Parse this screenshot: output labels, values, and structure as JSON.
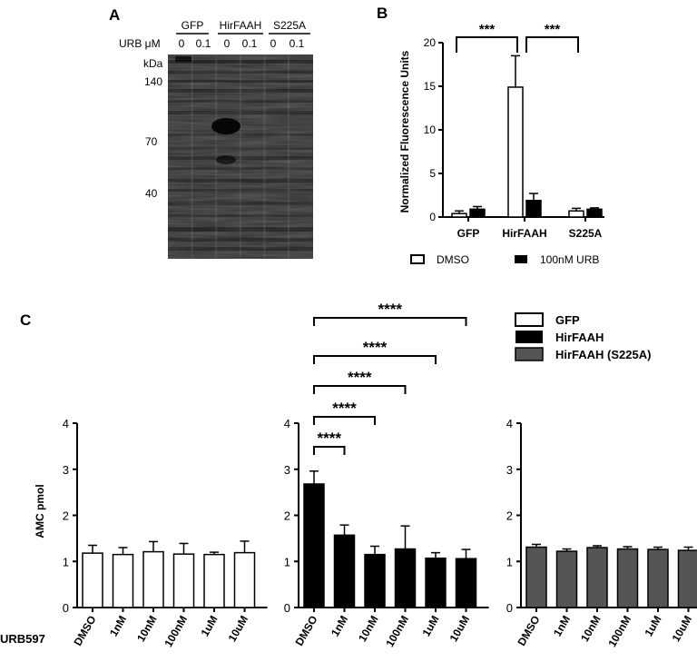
{
  "panels": {
    "A": {
      "letter": "A",
      "groups": [
        "GFP",
        "HirFAAH",
        "S225A"
      ],
      "urb_label": "URB μM",
      "lane_doses": [
        "0",
        "0.1",
        "0",
        "0.1",
        "0",
        "0.1"
      ],
      "kda_label": "kDa",
      "markers": [
        "140",
        "70",
        "40"
      ]
    },
    "B": {
      "letter": "B",
      "ylabel": "Normalized Fluorescence Units",
      "ylim": [
        0,
        20
      ],
      "yticks": [
        "0",
        "5",
        "10",
        "15",
        "20"
      ],
      "categories": [
        "GFP",
        "HirFAAH",
        "S225A"
      ],
      "legend": [
        "DMSO",
        "100nM URB"
      ],
      "sig": [
        "***",
        "***"
      ]
    },
    "C": {
      "letter": "C",
      "ylabel": "AMC pmol",
      "row_label": "URB597",
      "ylim": [
        0,
        4
      ],
      "yticks": [
        "0",
        "1",
        "2",
        "3",
        "4"
      ],
      "legend": [
        "GFP",
        "HirFAAH",
        "HirFAAH (S225A)"
      ],
      "sig": [
        "****",
        "****",
        "****",
        "****",
        "****"
      ]
    }
  },
  "chart_data": [
    {
      "type": "bar",
      "title": "",
      "xlabel": "",
      "ylabel": "Normalized Fluorescence Units",
      "ylim": [
        0,
        20
      ],
      "categories": [
        "GFP",
        "HirFAAH",
        "S225A"
      ],
      "series": [
        {
          "name": "DMSO",
          "values": [
            0.4,
            14.9,
            0.7
          ],
          "errors": [
            0.3,
            3.6,
            0.3
          ],
          "color": "#ffffff"
        },
        {
          "name": "100nM URB",
          "values": [
            0.9,
            1.9,
            0.9
          ],
          "errors": [
            0.3,
            0.8,
            0.15
          ],
          "color": "#000000"
        }
      ],
      "legend_position": "bottom",
      "grid": false
    },
    {
      "type": "bar",
      "title": "",
      "xlabel": "URB597",
      "ylabel": "AMC pmol",
      "ylim": [
        0,
        4
      ],
      "categories": [
        "DMSO",
        "1nM",
        "10nM",
        "100nM",
        "1uM",
        "10uM"
      ],
      "series": [
        {
          "name": "GFP",
          "values": [
            1.18,
            1.15,
            1.21,
            1.16,
            1.15,
            1.19
          ],
          "errors": [
            0.17,
            0.15,
            0.22,
            0.23,
            0.05,
            0.25
          ],
          "color": "#ffffff"
        },
        {
          "name": "HirFAAH",
          "values": [
            2.68,
            1.57,
            1.15,
            1.27,
            1.07,
            1.06
          ],
          "errors": [
            0.28,
            0.22,
            0.18,
            0.5,
            0.12,
            0.2
          ],
          "color": "#000000"
        },
        {
          "name": "HirFAAH (S225A)",
          "values": [
            1.31,
            1.22,
            1.3,
            1.27,
            1.26,
            1.24
          ],
          "errors": [
            0.06,
            0.05,
            0.04,
            0.05,
            0.05,
            0.07
          ],
          "color": "#555555"
        }
      ],
      "legend_position": "top-right",
      "grid": false
    }
  ]
}
